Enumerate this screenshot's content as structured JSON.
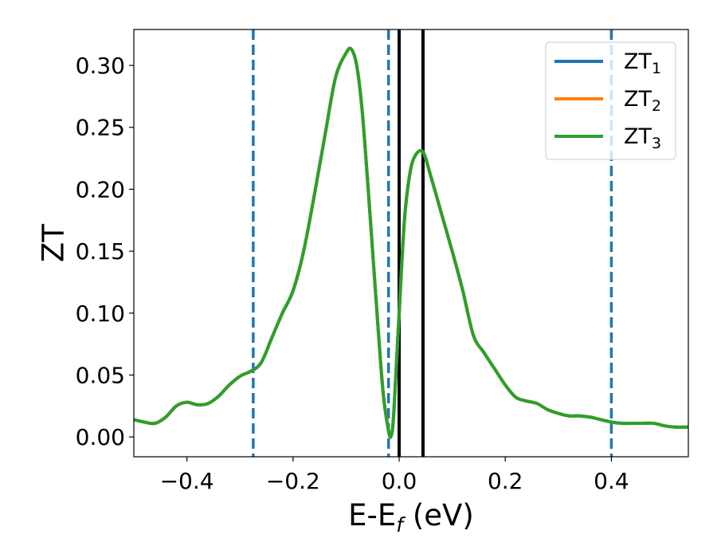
{
  "chart_data": {
    "type": "line",
    "xlabel": "E-E",
    "xlabel_sub": "f",
    "xlabel_unit": " (eV)",
    "ylabel": "ZT",
    "xlim": [
      -0.5,
      0.545
    ],
    "ylim": [
      -0.016,
      0.329
    ],
    "xticks": [
      -0.4,
      -0.2,
      0.0,
      0.2,
      0.4
    ],
    "xtick_labels": [
      "−0.4",
      "−0.2",
      "0.0",
      "0.2",
      "0.4"
    ],
    "yticks": [
      0.0,
      0.05,
      0.1,
      0.15,
      0.2,
      0.25,
      0.3
    ],
    "ytick_labels": [
      "0.00",
      "0.05",
      "0.10",
      "0.15",
      "0.20",
      "0.25",
      "0.30"
    ],
    "grid": false,
    "legend_position": "top-right",
    "vlines": [
      {
        "x": -0.275,
        "style": "dashed",
        "color": "#1f77b4"
      },
      {
        "x": -0.02,
        "style": "dashed",
        "color": "#1f77b4"
      },
      {
        "x": 0.0,
        "style": "solid",
        "color": "#000000"
      },
      {
        "x": 0.045,
        "style": "solid",
        "color": "#000000"
      },
      {
        "x": 0.4,
        "style": "dashed",
        "color": "#1f77b4"
      }
    ],
    "series": [
      {
        "name": "ZT",
        "sub": "1",
        "color": "#1f77b4",
        "x": [
          -0.5,
          -0.48,
          -0.46,
          -0.44,
          -0.42,
          -0.4,
          -0.38,
          -0.36,
          -0.34,
          -0.32,
          -0.3,
          -0.28,
          -0.26,
          -0.24,
          -0.22,
          -0.2,
          -0.18,
          -0.16,
          -0.14,
          -0.12,
          -0.1,
          -0.09,
          -0.08,
          -0.07,
          -0.06,
          -0.05,
          -0.04,
          -0.03,
          -0.02,
          -0.015,
          -0.01,
          0.0,
          0.01,
          0.02,
          0.03,
          0.045,
          0.06,
          0.08,
          0.1,
          0.12,
          0.14,
          0.16,
          0.18,
          0.2,
          0.22,
          0.24,
          0.26,
          0.28,
          0.3,
          0.32,
          0.34,
          0.36,
          0.38,
          0.4,
          0.42,
          0.44,
          0.46,
          0.48,
          0.5,
          0.52,
          0.545
        ],
        "values": [
          0.014,
          0.012,
          0.011,
          0.016,
          0.025,
          0.028,
          0.026,
          0.027,
          0.033,
          0.042,
          0.049,
          0.053,
          0.06,
          0.08,
          0.1,
          0.118,
          0.15,
          0.195,
          0.243,
          0.29,
          0.31,
          0.313,
          0.3,
          0.265,
          0.21,
          0.15,
          0.09,
          0.035,
          0.005,
          0.001,
          0.02,
          0.1,
          0.175,
          0.212,
          0.227,
          0.23,
          0.21,
          0.18,
          0.15,
          0.118,
          0.082,
          0.068,
          0.055,
          0.042,
          0.032,
          0.029,
          0.027,
          0.022,
          0.019,
          0.017,
          0.017,
          0.016,
          0.014,
          0.012,
          0.011,
          0.011,
          0.011,
          0.011,
          0.009,
          0.008,
          0.008
        ]
      },
      {
        "name": "ZT",
        "sub": "2",
        "color": "#ff7f0e",
        "x": [
          -0.5,
          -0.48,
          -0.46,
          -0.44,
          -0.42,
          -0.4,
          -0.38,
          -0.36,
          -0.34,
          -0.32,
          -0.3,
          -0.28,
          -0.26,
          -0.24,
          -0.22,
          -0.2,
          -0.18,
          -0.16,
          -0.14,
          -0.12,
          -0.1,
          -0.09,
          -0.08,
          -0.07,
          -0.06,
          -0.05,
          -0.04,
          -0.03,
          -0.02,
          -0.015,
          -0.01,
          0.0,
          0.01,
          0.02,
          0.03,
          0.045,
          0.06,
          0.08,
          0.1,
          0.12,
          0.14,
          0.16,
          0.18,
          0.2,
          0.22,
          0.24,
          0.26,
          0.28,
          0.3,
          0.32,
          0.34,
          0.36,
          0.38,
          0.4,
          0.42,
          0.44,
          0.46,
          0.48,
          0.5,
          0.52,
          0.545
        ],
        "values": [
          0.014,
          0.012,
          0.011,
          0.016,
          0.025,
          0.028,
          0.026,
          0.027,
          0.033,
          0.042,
          0.049,
          0.053,
          0.06,
          0.08,
          0.1,
          0.118,
          0.15,
          0.195,
          0.243,
          0.29,
          0.31,
          0.313,
          0.3,
          0.265,
          0.21,
          0.15,
          0.09,
          0.035,
          0.005,
          0.001,
          0.02,
          0.1,
          0.175,
          0.212,
          0.227,
          0.23,
          0.21,
          0.18,
          0.15,
          0.118,
          0.082,
          0.068,
          0.055,
          0.042,
          0.032,
          0.029,
          0.027,
          0.022,
          0.019,
          0.017,
          0.017,
          0.016,
          0.014,
          0.012,
          0.011,
          0.011,
          0.011,
          0.011,
          0.009,
          0.008,
          0.008
        ]
      },
      {
        "name": "ZT",
        "sub": "3",
        "color": "#2ca02c",
        "x": [
          -0.5,
          -0.48,
          -0.46,
          -0.44,
          -0.42,
          -0.4,
          -0.38,
          -0.36,
          -0.34,
          -0.32,
          -0.3,
          -0.28,
          -0.26,
          -0.24,
          -0.22,
          -0.2,
          -0.18,
          -0.16,
          -0.14,
          -0.12,
          -0.1,
          -0.09,
          -0.08,
          -0.07,
          -0.06,
          -0.05,
          -0.04,
          -0.03,
          -0.02,
          -0.015,
          -0.01,
          0.0,
          0.01,
          0.02,
          0.03,
          0.045,
          0.06,
          0.08,
          0.1,
          0.12,
          0.14,
          0.16,
          0.18,
          0.2,
          0.22,
          0.24,
          0.26,
          0.28,
          0.3,
          0.32,
          0.34,
          0.36,
          0.38,
          0.4,
          0.42,
          0.44,
          0.46,
          0.48,
          0.5,
          0.52,
          0.545
        ],
        "values": [
          0.014,
          0.012,
          0.011,
          0.016,
          0.025,
          0.028,
          0.026,
          0.027,
          0.033,
          0.042,
          0.049,
          0.053,
          0.06,
          0.08,
          0.1,
          0.118,
          0.15,
          0.195,
          0.243,
          0.29,
          0.31,
          0.313,
          0.3,
          0.265,
          0.21,
          0.15,
          0.09,
          0.035,
          0.005,
          0.001,
          0.02,
          0.1,
          0.175,
          0.212,
          0.227,
          0.23,
          0.21,
          0.18,
          0.15,
          0.118,
          0.082,
          0.068,
          0.055,
          0.042,
          0.032,
          0.029,
          0.027,
          0.022,
          0.019,
          0.017,
          0.017,
          0.016,
          0.014,
          0.012,
          0.011,
          0.011,
          0.011,
          0.011,
          0.009,
          0.008,
          0.008
        ]
      }
    ]
  }
}
